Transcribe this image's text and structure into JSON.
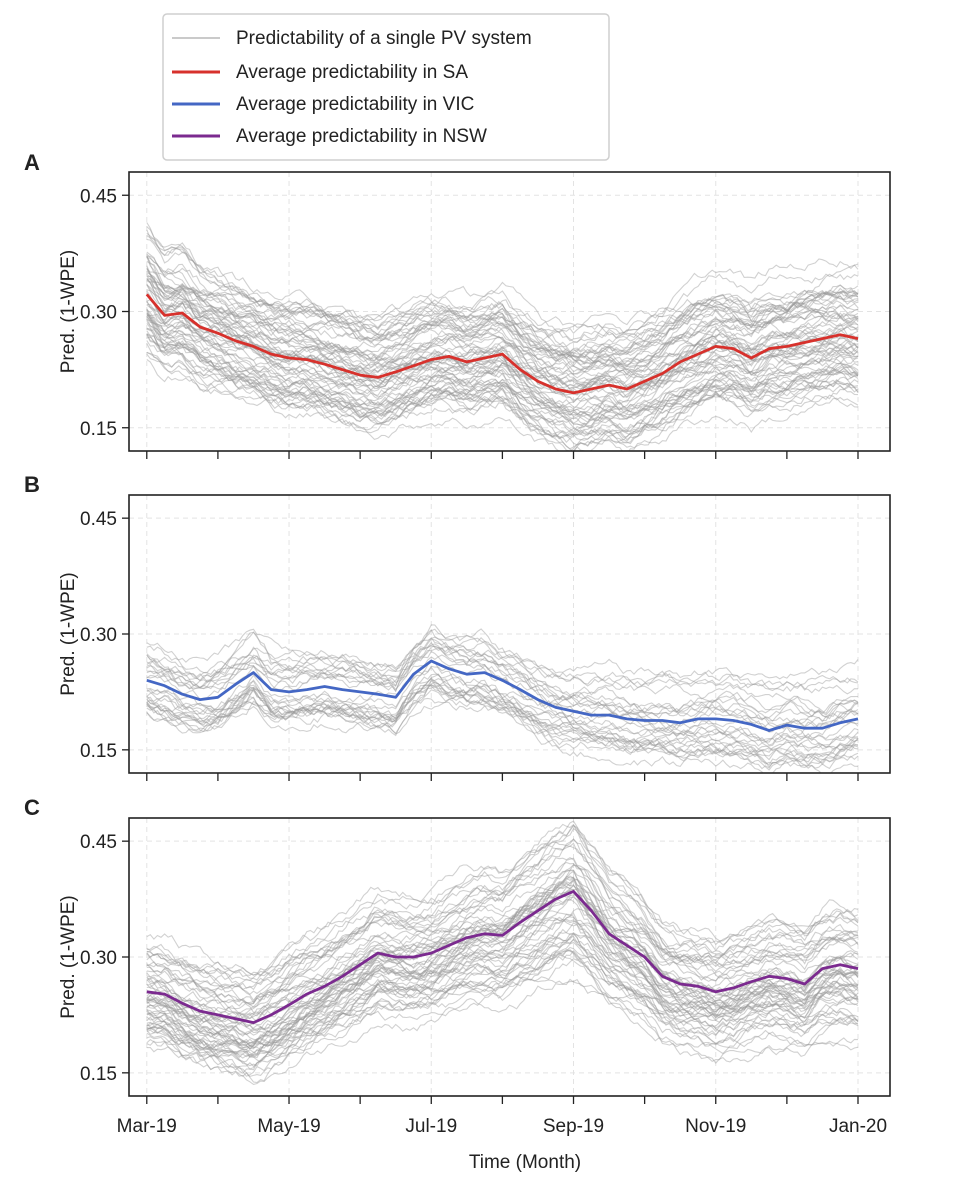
{
  "legend": [
    {
      "label": "Predictability of a single PV system",
      "color": "#b9b9b9"
    },
    {
      "label": "Average predictability in SA",
      "color": "#d7312c"
    },
    {
      "label": "Average predictability in VIC",
      "color": "#4467c4"
    },
    {
      "label": "Average predictability in NSW",
      "color": "#7b2a8f"
    }
  ],
  "shared": {
    "xlabel": "Time (Month)",
    "xticklabels": [
      "Mar-19",
      "May-19",
      "Jul-19",
      "Sep-19",
      "Nov-19",
      "Jan-20"
    ],
    "xticks_months": [
      0,
      2,
      4,
      6,
      8,
      10
    ],
    "ylabel": "Pred. (1-WPE)",
    "yticks": [
      0.15,
      0.3,
      0.45
    ],
    "yticklabels": [
      "0.15",
      "0.30",
      "0.45"
    ],
    "ylim": [
      0.12,
      0.48
    ],
    "xlim_months": [
      -0.25,
      10.45
    ],
    "grid": true
  },
  "chart_data": [
    {
      "type": "line",
      "panel": "A",
      "xlabel": "",
      "ylabel": "Pred. (1-WPE)",
      "ylim": [
        0.12,
        0.48
      ],
      "x_unit": "months since Mar-19",
      "series": [
        {
          "name": "Average predictability in SA",
          "color": "#d7312c",
          "x": [
            0,
            0.25,
            0.5,
            0.75,
            1,
            1.25,
            1.5,
            1.75,
            2,
            2.25,
            2.5,
            2.75,
            3,
            3.25,
            3.5,
            3.75,
            4,
            4.25,
            4.5,
            4.75,
            5,
            5.25,
            5.5,
            5.75,
            6,
            6.25,
            6.5,
            6.75,
            7,
            7.25,
            7.5,
            7.75,
            8,
            8.25,
            8.5,
            8.75,
            9,
            9.25,
            9.5,
            9.75,
            10
          ],
          "y": [
            0.322,
            0.295,
            0.298,
            0.28,
            0.272,
            0.262,
            0.255,
            0.245,
            0.24,
            0.238,
            0.232,
            0.225,
            0.218,
            0.215,
            0.222,
            0.23,
            0.238,
            0.242,
            0.235,
            0.24,
            0.245,
            0.225,
            0.21,
            0.2,
            0.195,
            0.2,
            0.205,
            0.2,
            0.21,
            0.22,
            0.235,
            0.245,
            0.255,
            0.252,
            0.24,
            0.252,
            0.255,
            0.26,
            0.265,
            0.27,
            0.265
          ]
        }
      ],
      "background_lines": "many single-system series (grey)"
    },
    {
      "type": "line",
      "panel": "B",
      "xlabel": "",
      "ylabel": "Pred. (1-WPE)",
      "ylim": [
        0.12,
        0.48
      ],
      "x_unit": "months since Mar-19",
      "series": [
        {
          "name": "Average predictability in VIC",
          "color": "#4467c4",
          "x": [
            0,
            0.25,
            0.5,
            0.75,
            1,
            1.25,
            1.5,
            1.75,
            2,
            2.25,
            2.5,
            2.75,
            3,
            3.25,
            3.5,
            3.75,
            4,
            4.25,
            4.5,
            4.75,
            5,
            5.25,
            5.5,
            5.75,
            6,
            6.25,
            6.5,
            6.75,
            7,
            7.25,
            7.5,
            7.75,
            8,
            8.25,
            8.5,
            8.75,
            9,
            9.25,
            9.5,
            9.75,
            10
          ],
          "y": [
            0.24,
            0.233,
            0.222,
            0.215,
            0.218,
            0.235,
            0.25,
            0.228,
            0.225,
            0.228,
            0.232,
            0.228,
            0.225,
            0.222,
            0.218,
            0.248,
            0.265,
            0.255,
            0.248,
            0.25,
            0.24,
            0.228,
            0.215,
            0.205,
            0.2,
            0.195,
            0.195,
            0.19,
            0.188,
            0.188,
            0.185,
            0.19,
            0.19,
            0.188,
            0.183,
            0.175,
            0.182,
            0.178,
            0.178,
            0.185,
            0.19
          ]
        }
      ],
      "background_lines": "many single-system series (grey)"
    },
    {
      "type": "line",
      "panel": "C",
      "xlabel": "Time (Month)",
      "ylabel": "Pred. (1-WPE)",
      "ylim": [
        0.12,
        0.48
      ],
      "x_unit": "months since Mar-19",
      "series": [
        {
          "name": "Average predictability in NSW",
          "color": "#7b2a8f",
          "x": [
            0,
            0.25,
            0.5,
            0.75,
            1,
            1.25,
            1.5,
            1.75,
            2,
            2.25,
            2.5,
            2.75,
            3,
            3.25,
            3.5,
            3.75,
            4,
            4.25,
            4.5,
            4.75,
            5,
            5.25,
            5.5,
            5.75,
            6,
            6.25,
            6.5,
            6.75,
            7,
            7.25,
            7.5,
            7.75,
            8,
            8.25,
            8.5,
            8.75,
            9,
            9.25,
            9.5,
            9.75,
            10
          ],
          "y": [
            0.255,
            0.252,
            0.24,
            0.23,
            0.225,
            0.22,
            0.215,
            0.225,
            0.238,
            0.252,
            0.262,
            0.275,
            0.29,
            0.305,
            0.3,
            0.3,
            0.305,
            0.315,
            0.325,
            0.33,
            0.328,
            0.345,
            0.36,
            0.375,
            0.385,
            0.36,
            0.33,
            0.315,
            0.3,
            0.275,
            0.265,
            0.262,
            0.255,
            0.26,
            0.268,
            0.275,
            0.272,
            0.265,
            0.285,
            0.29,
            0.285
          ]
        }
      ],
      "background_lines": "many single-system series (grey)"
    }
  ]
}
